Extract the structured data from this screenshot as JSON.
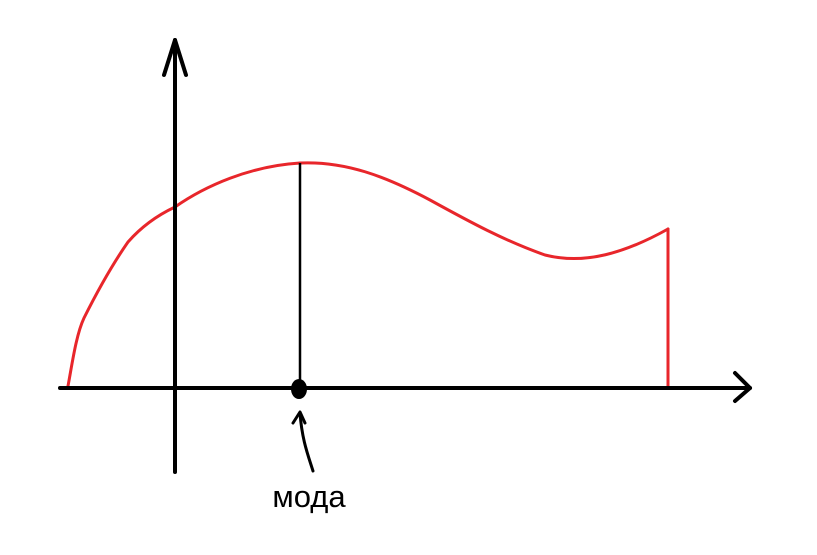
{
  "diagram": {
    "mode_label": "мода",
    "colors": {
      "axes": "#000000",
      "curve": "#e8262b",
      "marker": "#000000",
      "background": "#ffffff"
    },
    "icons": [
      "arrow-head-icon",
      "pointer-arrow-icon"
    ]
  }
}
